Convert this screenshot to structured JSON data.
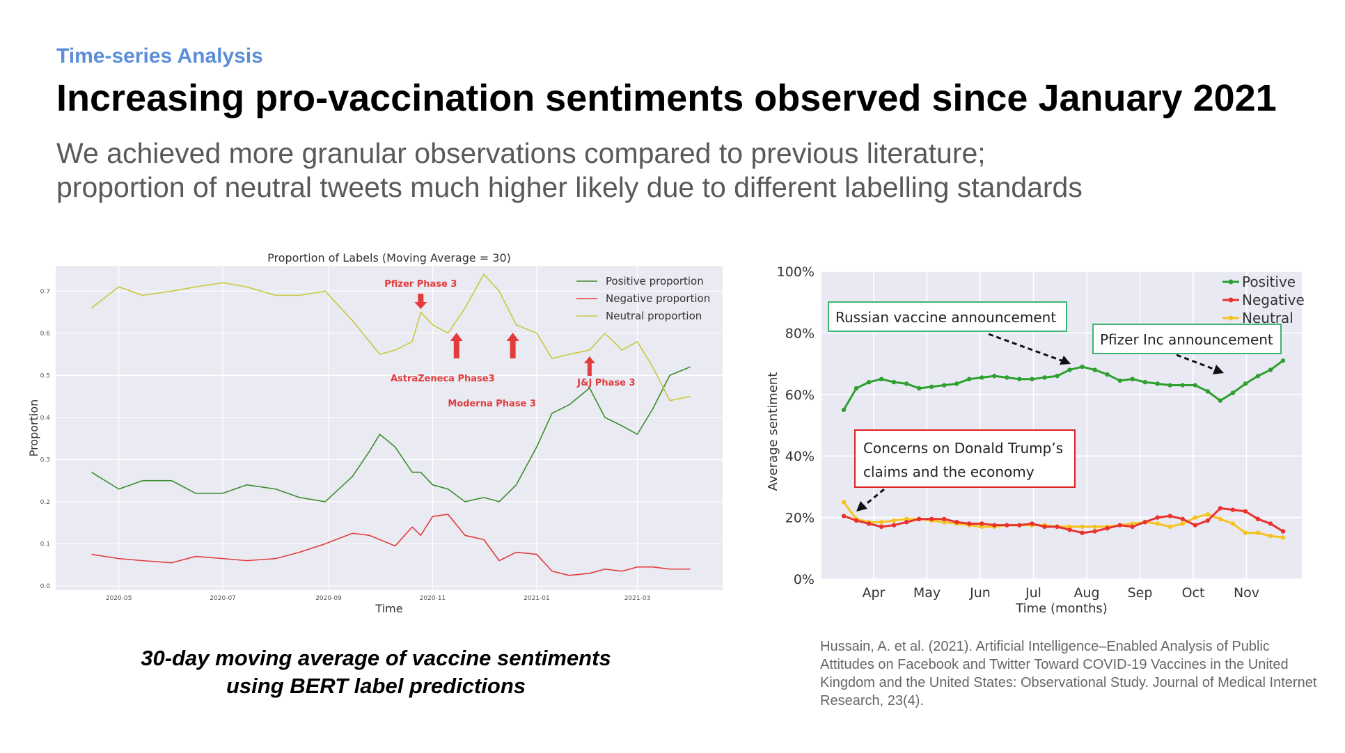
{
  "slide": {
    "section": "Time-series Analysis",
    "title": "Increasing pro-vaccination sentiments observed since January 2021",
    "subtitle_lines": [
      "We achieved more granular observations compared to previous literature;",
      "proportion of neutral tweets much higher likely due to different labelling standards"
    ],
    "caption_lines": [
      "30-day moving average of vaccine sentiments",
      "using BERT label predictions"
    ],
    "citation": "Hussain, A. et al. (2021). Artificial Intelligence–Enabled Analysis of Public Attitudes on Facebook and Twitter Toward COVID-19 Vaccines in the United Kingdom and the United States: Observational Study. Journal of Medical Internet Research, 23(4)."
  },
  "chart_data": [
    {
      "type": "line",
      "title": "Proportion of Labels (Moving Average = 30)",
      "xlabel": "Time",
      "ylabel": "Proportion",
      "x_ticks": [
        "2020-05",
        "2020-07",
        "2020-09",
        "2020-11",
        "2021-01",
        "2021-03"
      ],
      "y_ticks": [
        "0.0",
        "0.1",
        "0.2",
        "0.3",
        "0.4",
        "0.5",
        "0.6",
        "0.7"
      ],
      "ylim": [
        -0.01,
        0.76
      ],
      "x_range": [
        "2020-03-25",
        "2021-04-20"
      ],
      "grid": true,
      "legend_position": "top-right",
      "x": [
        "2020-04-15",
        "2020-05-01",
        "2020-05-15",
        "2020-06-01",
        "2020-06-15",
        "2020-07-01",
        "2020-07-15",
        "2020-08-01",
        "2020-08-15",
        "2020-08-30",
        "2020-09-15",
        "2020-09-25",
        "2020-10-01",
        "2020-10-10",
        "2020-10-20",
        "2020-10-25",
        "2020-11-01",
        "2020-11-10",
        "2020-11-20",
        "2020-12-01",
        "2020-12-10",
        "2020-12-20",
        "2021-01-01",
        "2021-01-10",
        "2021-01-20",
        "2021-02-01",
        "2021-02-10",
        "2021-02-20",
        "2021-03-01",
        "2021-03-10",
        "2021-03-20",
        "2021-04-01"
      ],
      "series": [
        {
          "name": "Positive proportion",
          "color": "#3c8c2c",
          "values": [
            0.27,
            0.23,
            0.25,
            0.25,
            0.22,
            0.22,
            0.24,
            0.23,
            0.21,
            0.2,
            0.26,
            0.32,
            0.36,
            0.33,
            0.27,
            0.27,
            0.24,
            0.23,
            0.2,
            0.21,
            0.2,
            0.24,
            0.33,
            0.41,
            0.43,
            0.47,
            0.4,
            0.38,
            0.36,
            0.42,
            0.5,
            0.52
          ]
        },
        {
          "name": "Negative proportion",
          "color": "#e23c3c",
          "values": [
            0.075,
            0.065,
            0.06,
            0.055,
            0.07,
            0.065,
            0.06,
            0.065,
            0.08,
            0.1,
            0.125,
            0.12,
            0.11,
            0.095,
            0.14,
            0.12,
            0.165,
            0.17,
            0.12,
            0.11,
            0.06,
            0.08,
            0.075,
            0.035,
            0.025,
            0.03,
            0.04,
            0.035,
            0.045,
            0.045,
            0.04,
            0.04
          ]
        },
        {
          "name": "Neutral proportion",
          "color": "#c8c83c",
          "values": [
            0.66,
            0.71,
            0.69,
            0.7,
            0.71,
            0.72,
            0.71,
            0.69,
            0.69,
            0.7,
            0.63,
            0.58,
            0.55,
            0.56,
            0.58,
            0.65,
            0.62,
            0.6,
            0.66,
            0.74,
            0.7,
            0.62,
            0.6,
            0.54,
            0.55,
            0.56,
            0.6,
            0.56,
            0.58,
            0.52,
            0.44,
            0.45
          ]
        }
      ],
      "annotations": [
        {
          "text": "Pfizer Phase 3",
          "arrow": "down",
          "x": "2020-10-25",
          "color": "#e23c3c"
        },
        {
          "text": "AstraZeneca Phase3",
          "arrow": "up",
          "x": "2020-11-15",
          "color": "#e23c3c"
        },
        {
          "text": "Moderna Phase 3",
          "arrow": "up",
          "x": "2020-12-18",
          "color": "#e23c3c"
        },
        {
          "text": "J&J Phase 3",
          "arrow": "up",
          "x": "2021-02-01",
          "color": "#e23c3c"
        }
      ]
    },
    {
      "type": "line",
      "title": "",
      "xlabel": "Time (months)",
      "ylabel": "Average sentiment",
      "x_ticks": [
        "Apr",
        "May",
        "Jun",
        "Jul",
        "Aug",
        "Sep",
        "Oct",
        "Nov"
      ],
      "y_ticks": [
        "0%",
        "20%",
        "40%",
        "60%",
        "80%",
        "100%"
      ],
      "ylim": [
        0,
        100
      ],
      "grid": true,
      "legend_position": "top-right",
      "series": [
        {
          "name": "Positive",
          "color": "#2ea02e",
          "values": [
            55,
            62,
            64,
            65,
            64,
            63.5,
            62,
            62.5,
            63,
            63.5,
            65,
            65.5,
            66,
            65.5,
            65,
            65,
            65.5,
            66,
            68,
            69,
            68,
            66.5,
            64.5,
            65,
            64,
            63.5,
            63,
            63,
            63,
            61,
            58,
            60.5,
            63.5,
            66,
            68,
            71
          ]
        },
        {
          "name": "Negative",
          "color": "#e8322d",
          "values": [
            20.5,
            19,
            18,
            17,
            17.5,
            18.5,
            19.5,
            19.5,
            19.5,
            18.5,
            18,
            18,
            17.5,
            17.5,
            17.5,
            18,
            17,
            17,
            16,
            15,
            15.5,
            16.5,
            17.5,
            17,
            18.5,
            20,
            20.5,
            19.5,
            17.5,
            19,
            23,
            22.5,
            22,
            19.5,
            18,
            15.5
          ]
        },
        {
          "name": "Neutral",
          "color": "#f5c320",
          "values": [
            25,
            19.5,
            18.5,
            18.5,
            19,
            19.5,
            19.5,
            19,
            18.5,
            18,
            17.5,
            17,
            17,
            17.5,
            17.5,
            17.5,
            17.5,
            17,
            17,
            17,
            17,
            17,
            17.5,
            18,
            18.5,
            18,
            17,
            18,
            20,
            21,
            19.5,
            18,
            15,
            15,
            14,
            13.5
          ]
        }
      ],
      "annotations": [
        {
          "text": "Russian vaccine announcement",
          "box_color": "#3cb371"
        },
        {
          "text": "Pfizer Inc announcement",
          "box_color": "#3cb371"
        },
        {
          "text_lines": [
            "Concerns on Donald Trump’s",
            "claims and the economy"
          ],
          "box_color": "#e02020"
        }
      ]
    }
  ]
}
